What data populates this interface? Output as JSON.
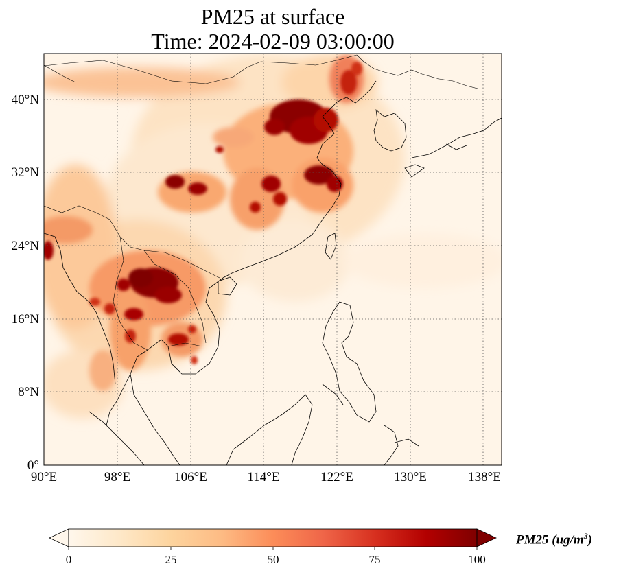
{
  "title": {
    "line1": "PM25 at surface",
    "line2": "Time: 2024-02-09 03:00:00"
  },
  "map": {
    "region": "East and Southeast Asia",
    "lon_range": [
      90,
      140
    ],
    "lat_range": [
      0,
      45
    ],
    "gridlines": "dotted",
    "lon_ticks": [
      "90°E",
      "98°E",
      "106°E",
      "114°E",
      "122°E",
      "130°E",
      "138°E"
    ],
    "lat_ticks": [
      "0°",
      "8°N",
      "16°N",
      "24°N",
      "32°N",
      "40°N"
    ],
    "hotspots": [
      {
        "name": "North China Plain",
        "level": "100+"
      },
      {
        "name": "Sichuan Basin",
        "level": "100+"
      },
      {
        "name": "Yangtze River Delta",
        "level": "100+"
      },
      {
        "name": "Northern Laos / Thailand",
        "level": "100+"
      },
      {
        "name": "Cambodia",
        "level": "75-100"
      }
    ]
  },
  "colorbar": {
    "label_main": "PM25 (ug/m",
    "label_sup": "3",
    "label_end": ")",
    "colormap": "OrRd",
    "colors": [
      "#fff7ec",
      "#fee8c8",
      "#fdd49e",
      "#fdbb84",
      "#fc8d59",
      "#ef6548",
      "#d7301f",
      "#b30000",
      "#7f0000"
    ],
    "ticks": [
      "0",
      "25",
      "50",
      "75",
      "100"
    ],
    "range": [
      0,
      100
    ],
    "extend": "both"
  }
}
